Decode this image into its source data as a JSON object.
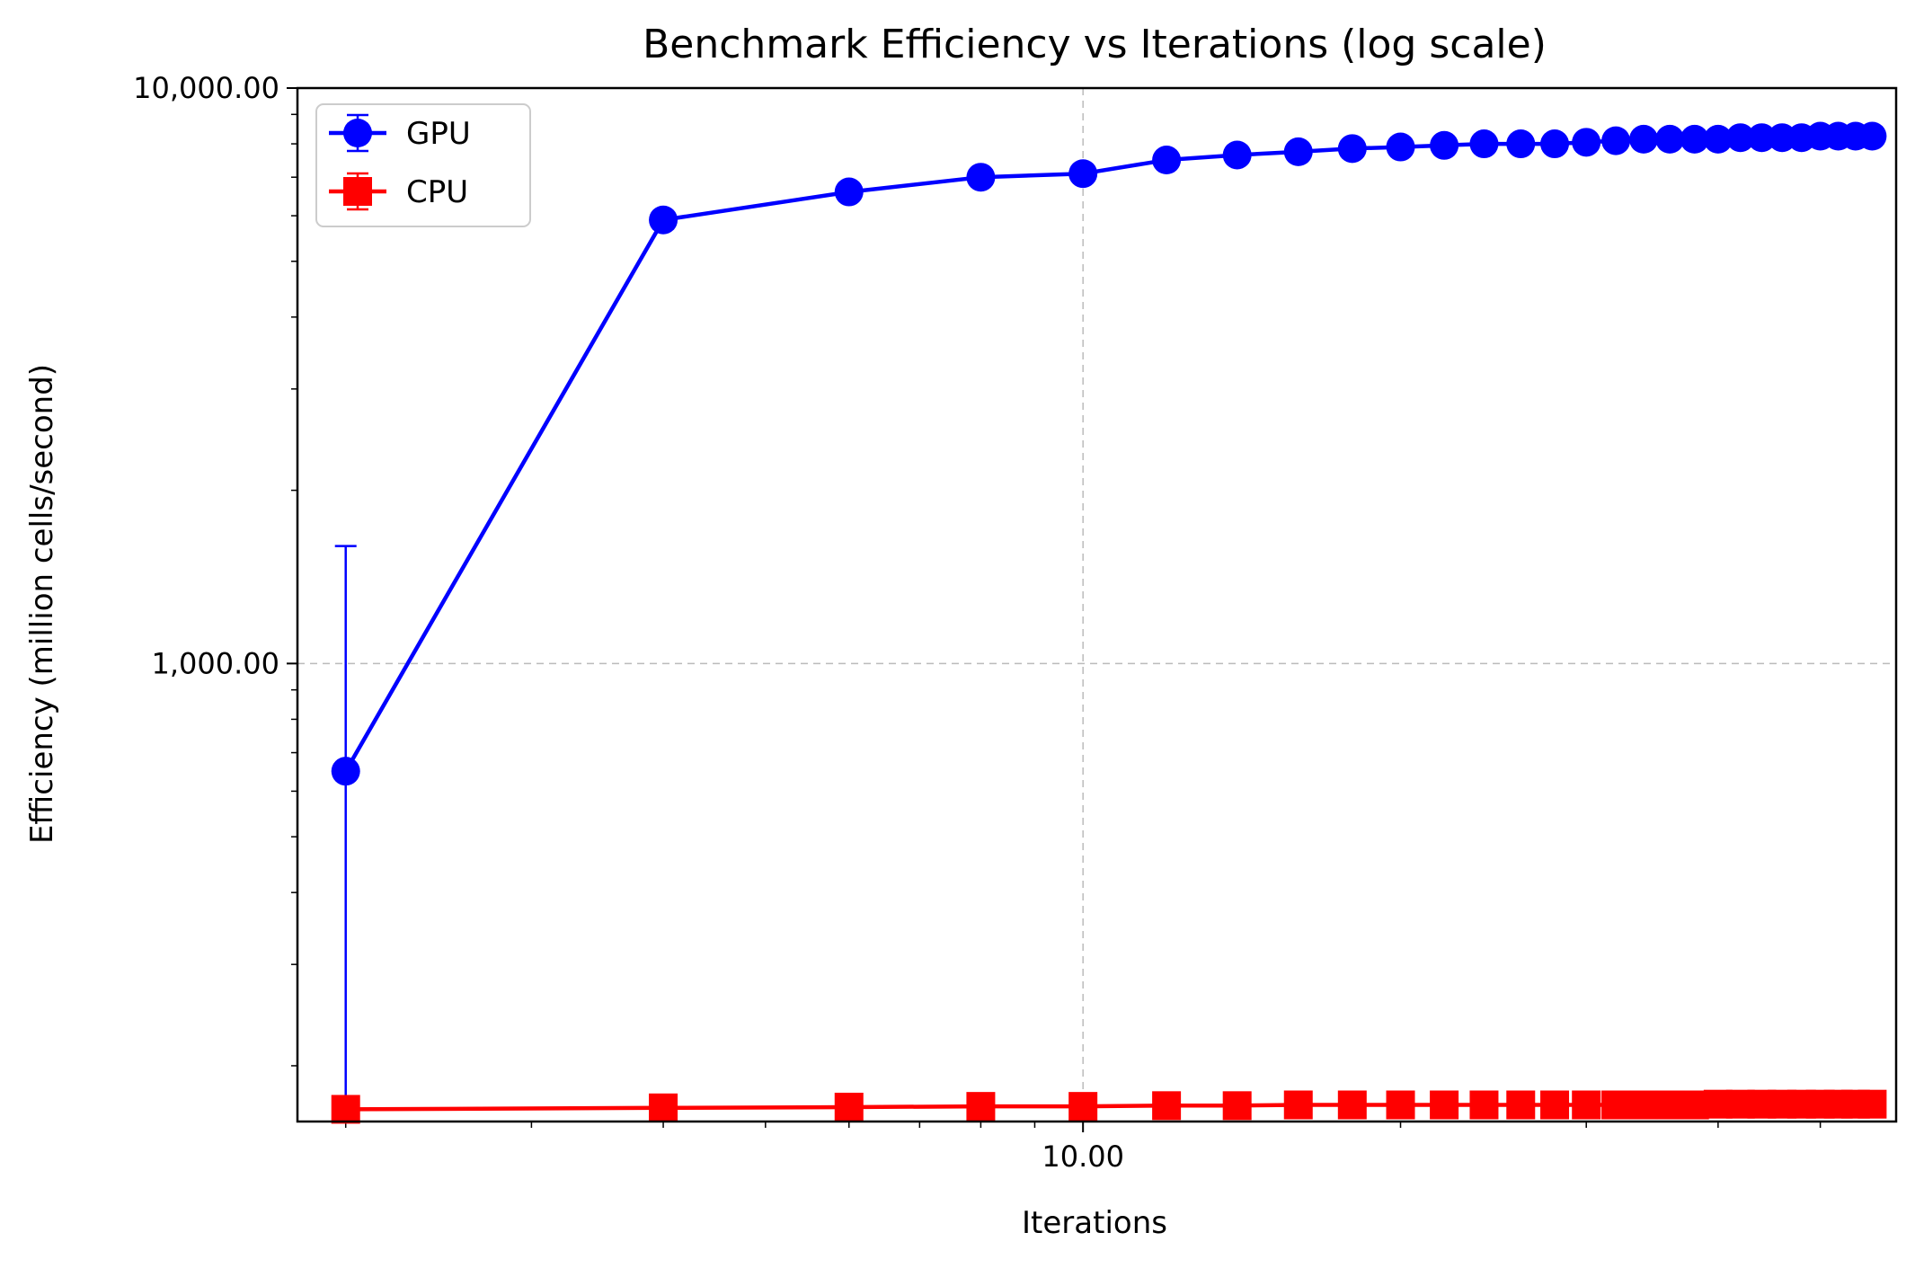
{
  "chart_data": {
    "type": "line",
    "title": "Benchmark Efficiency vs Iterations (log scale)",
    "xlabel": "Iterations",
    "ylabel": "Efficiency (million cells/second)",
    "xscale": "log",
    "yscale": "log",
    "xlim": [
      1.8,
      59
    ],
    "ylim": [
      160,
      10000
    ],
    "x_ticks": [
      {
        "value": 10,
        "label": "10.00"
      }
    ],
    "y_ticks": [
      {
        "value": 1000,
        "label": "1,000.00"
      },
      {
        "value": 10000,
        "label": "10,000.00"
      }
    ],
    "grid": true,
    "legend_position": "top-left",
    "x": [
      2,
      4,
      6,
      8,
      10,
      12,
      14,
      16,
      18,
      20,
      22,
      24,
      26,
      28,
      30,
      32,
      34,
      36,
      38,
      40,
      42,
      44,
      46,
      48,
      50,
      52,
      54,
      56
    ],
    "series": [
      {
        "name": "GPU",
        "color": "#0000ff",
        "marker": "circle",
        "values": [
          650,
          5900,
          6600,
          7000,
          7100,
          7500,
          7650,
          7750,
          7850,
          7900,
          7950,
          8000,
          8000,
          8000,
          8050,
          8100,
          8150,
          8150,
          8150,
          8150,
          8200,
          8200,
          8200,
          8200,
          8250,
          8250,
          8250,
          8250
        ],
        "error_low": [
          505,
          200,
          60,
          50,
          150,
          50,
          40,
          30,
          30,
          30,
          30,
          30,
          30,
          30,
          30,
          30,
          30,
          30,
          30,
          30,
          30,
          30,
          30,
          30,
          30,
          30,
          30,
          30
        ],
        "error_high": [
          950,
          200,
          60,
          50,
          150,
          50,
          40,
          30,
          30,
          30,
          30,
          30,
          30,
          30,
          30,
          30,
          30,
          30,
          30,
          30,
          30,
          30,
          30,
          30,
          30,
          30,
          30,
          30
        ]
      },
      {
        "name": "CPU",
        "color": "#ff0000",
        "marker": "square",
        "values": [
          168,
          169,
          169.5,
          170,
          170,
          170.5,
          170.5,
          171,
          171,
          171,
          171,
          171,
          171,
          171,
          171,
          171,
          171,
          171,
          171,
          171.5,
          171.5,
          171.5,
          171.5,
          171.5,
          171.5,
          171.5,
          171.5,
          171.5
        ],
        "error_low": [
          1,
          1,
          1,
          1,
          1,
          1,
          1,
          1,
          1,
          1,
          1,
          1,
          1,
          1,
          1,
          1,
          1,
          1,
          1,
          1,
          1,
          1,
          1,
          1,
          1,
          1,
          1,
          1
        ],
        "error_high": [
          1,
          1,
          1,
          1,
          1,
          1,
          1,
          1,
          1,
          1,
          1,
          1,
          1,
          1,
          1,
          1,
          1,
          1,
          1,
          1,
          1,
          1,
          1,
          1,
          1,
          1,
          1,
          1
        ]
      }
    ]
  }
}
